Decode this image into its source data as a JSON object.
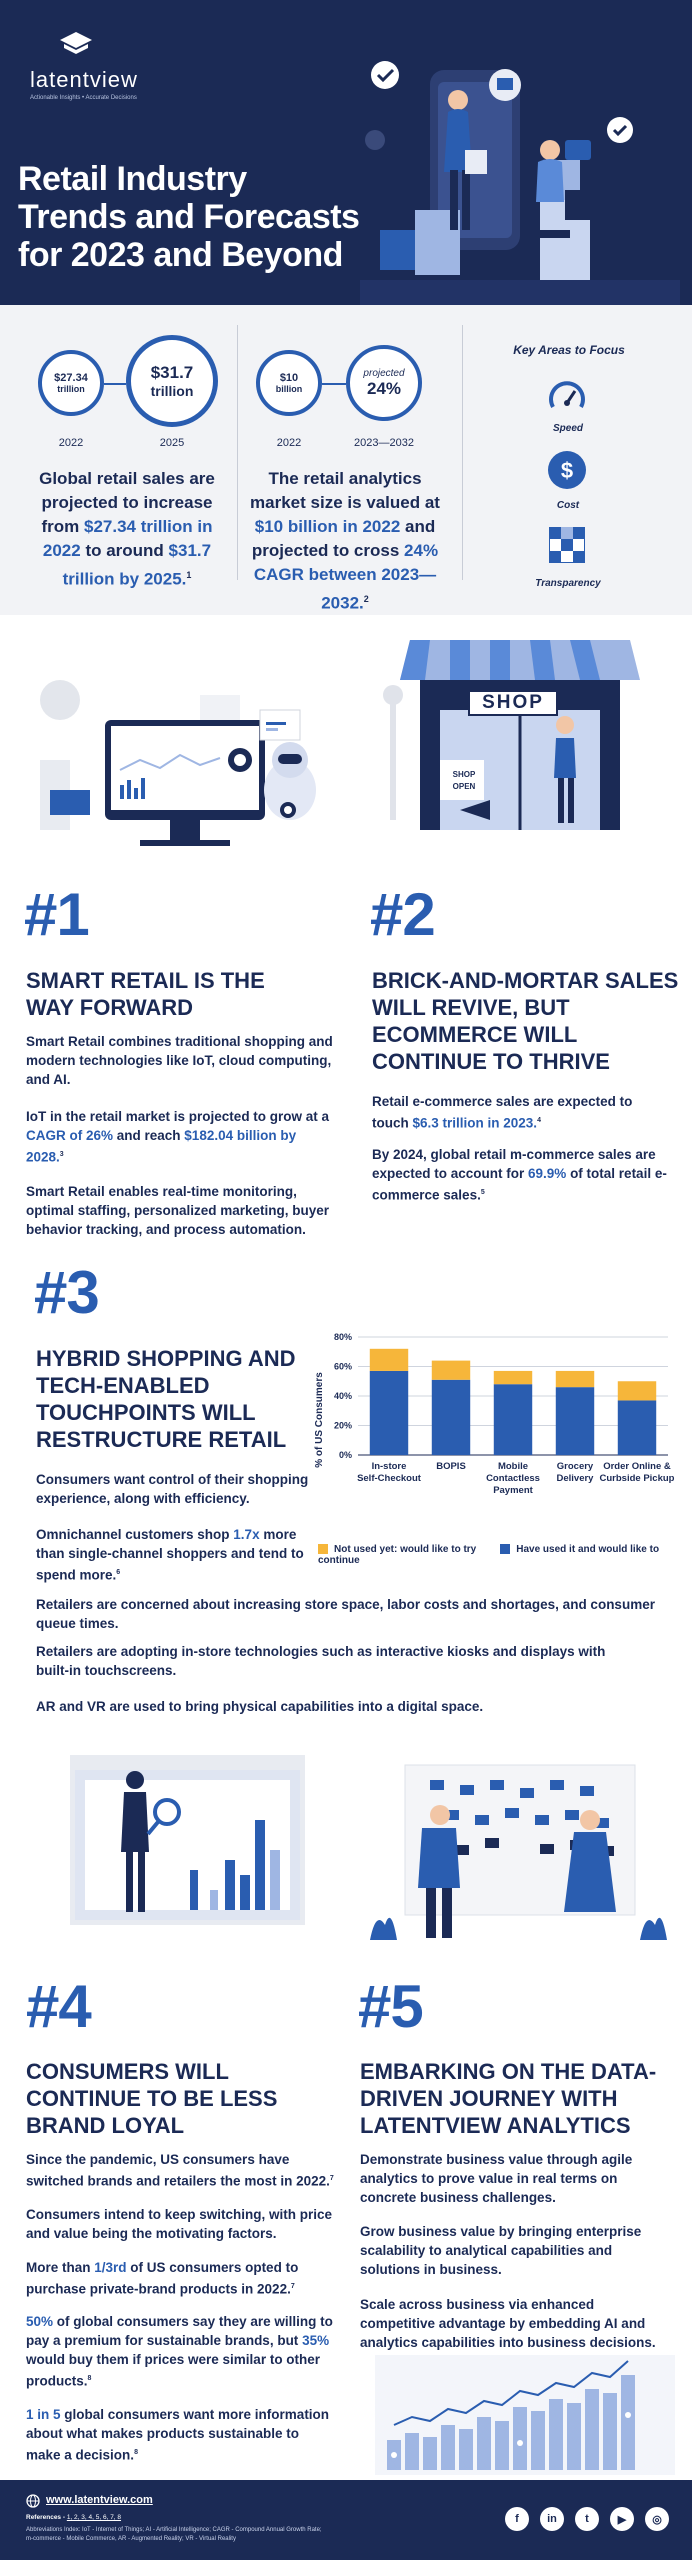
{
  "header": {
    "brand": "latentview",
    "tagline": "Actionable Insights • Accurate Decisions",
    "title_lines": [
      "Retail Industry",
      "Trends and Forecasts",
      "for 2023 and Beyond"
    ]
  },
  "stats": {
    "left": {
      "circle_a": {
        "value": "$27.34",
        "unit": "trillion",
        "year": "2022"
      },
      "circle_b": {
        "value": "$31.7",
        "unit": "trillion",
        "year": "2025"
      },
      "text_1": "Global retail sales are projected to increase from ",
      "hl_1": "$27.34 trillion in 2022",
      "text_2": " to around ",
      "hl_2": "$31.7 trillion by 2025.",
      "ref": "1"
    },
    "middle": {
      "circle_a": {
        "value": "$10",
        "unit": "billion",
        "year": "2022"
      },
      "circle_b": {
        "prefix": "projected",
        "value": "24%",
        "year": "2023—2032"
      },
      "text_1": "The retail analytics market size is valued at ",
      "hl_1": "$10 billion in 2022",
      "text_2": " and projected to cross ",
      "hl_2": "24% CAGR between 2023—2032.",
      "ref": "2"
    },
    "key_areas": {
      "title": "Key Areas to Focus",
      "items": [
        {
          "label": "Speed",
          "icon": "speedometer-icon"
        },
        {
          "label": "Cost",
          "icon": "dollar-icon"
        },
        {
          "label": "Transparency",
          "icon": "transparency-icon"
        }
      ]
    }
  },
  "s1": {
    "num": "#1",
    "title_lines": [
      "SMART RETAIL IS THE",
      "WAY FORWARD"
    ],
    "p1": "Smart Retail combines traditional shopping and modern technologies like IoT, cloud computing, and AI.",
    "p2_a": "IoT in the retail market is projected to grow at a ",
    "p2_hl1": "CAGR of 26%",
    "p2_b": " and reach ",
    "p2_hl2": "$182.04 billion by 2028.",
    "p2_ref": "3",
    "p3": "Smart Retail enables real-time monitoring, optimal staffing, personalized marketing, buyer behavior tracking, and process automation."
  },
  "s2": {
    "num": "#2",
    "title_lines": [
      "BRICK-AND-MORTAR SALES",
      "WILL REVIVE, BUT",
      "ECOMMERCE WILL",
      "CONTINUE TO THRIVE"
    ],
    "shop_sign": "SHOP",
    "open_sign": "SHOP OPEN",
    "p1_a": "Retail e-commerce sales are expected to touch ",
    "p1_hl": "$6.3 trillion in 2023.",
    "p1_ref": "4",
    "p2_a": "By 2024, global retail m-commerce sales are expected to account for ",
    "p2_hl": "69.9%",
    "p2_b": " of total retail e-commerce sales.",
    "p2_ref": "5"
  },
  "s3": {
    "num": "#3",
    "title_lines": [
      "HYBRID SHOPPING AND",
      "TECH-ENABLED",
      "TOUCHPOINTS WILL",
      "RESTRUCTURE RETAIL"
    ],
    "p1": "Consumers want control of their shopping experience, along with efficiency.",
    "p2_a": "Omnichannel customers shop ",
    "p2_hl": "1.7x",
    "p2_b": " more than single-channel shoppers and tend to spend more.",
    "p2_ref": "6",
    "p3": "Retailers are concerned about increasing store space, labor costs and shortages, and consumer queue times.",
    "p4": "Retailers are adopting in-store technologies such as interactive kiosks and displays with built-in touchscreens.",
    "p5": "AR and VR are used to bring physical capabilities into a digital space."
  },
  "chart_data": {
    "type": "bar",
    "stacked": true,
    "categories": [
      [
        "In-store",
        "Self-Checkout"
      ],
      [
        "BOPIS"
      ],
      [
        "Mobile",
        "Contactless",
        "Payment"
      ],
      [
        "Grocery",
        "Delivery"
      ],
      [
        "Order Online &",
        "Curbside Pickup"
      ]
    ],
    "series": [
      {
        "name": "Have used it and would like to continue",
        "values": [
          57,
          51,
          48,
          46,
          37
        ],
        "color": "#2a5db0"
      },
      {
        "name": "Not used yet: would like to try",
        "values": [
          15,
          13,
          9,
          11,
          13
        ],
        "color": "#f6b63a"
      }
    ],
    "ylabel": "% of US Consumers",
    "ylim": [
      0,
      80
    ],
    "yticks": [
      "0%",
      "20%",
      "40%",
      "60%",
      "80%"
    ],
    "grid": true,
    "legend": "bottom"
  },
  "s4": {
    "num": "#4",
    "title_lines": [
      "CONSUMERS WILL",
      "CONTINUE TO BE LESS",
      "BRAND LOYAL"
    ],
    "p1": "Since the pandemic, US consumers have switched brands and retailers the most in 2022.",
    "p1_ref": "7",
    "p2": "Consumers intend to keep switching, with price and value being the motivating factors.",
    "p3_a": "More than ",
    "p3_hl": "1/3rd",
    "p3_b": " of US consumers opted to purchase private-brand products in 2022.",
    "p3_ref": "7",
    "p4_hl1": "50%",
    "p4_a": " of global consumers say they are willing to pay a premium for sustainable brands, but ",
    "p4_hl2": "35%",
    "p4_b": " would buy them if prices were similar to other products.",
    "p4_ref": "8",
    "p5_hl": "1 in 5",
    "p5_a": " global consumers want more information about what makes products sustainable to make a decision.",
    "p5_ref": "8"
  },
  "s5": {
    "num": "#5",
    "title_lines": [
      "EMBARKING ON THE DATA-",
      "DRIVEN JOURNEY WITH",
      "LATENTVIEW ANALYTICS"
    ],
    "p1": "Demonstrate business value through agile analytics to prove value in real terms on concrete business challenges.",
    "p2": "Grow business value by bringing enterprise scalability to analytical capabilities and solutions in business.",
    "p3": "Scale across business via enhanced competitive advantage by embedding AI and analytics capabilities into business decisions."
  },
  "footer": {
    "url": "www.latentview.com",
    "references_label": "References - ",
    "references": "1, 2, 3, 4, 5, 6, 7, 8",
    "abbr_1": "Abbreviations Index: IoT - Internet of Things; AI - Artificial Intelligence; CAGR - Compound Annual Growth Rate;",
    "abbr_2": "m-commerce - Mobile Commerce, AR - Augmented Reality; VR - Virtual Reality",
    "social": [
      {
        "label": "f",
        "icon": "facebook-icon"
      },
      {
        "label": "in",
        "icon": "linkedin-icon"
      },
      {
        "label": "t",
        "icon": "twitter-icon"
      },
      {
        "label": "▶",
        "icon": "youtube-icon"
      },
      {
        "label": "◎",
        "icon": "instagram-icon"
      }
    ]
  }
}
